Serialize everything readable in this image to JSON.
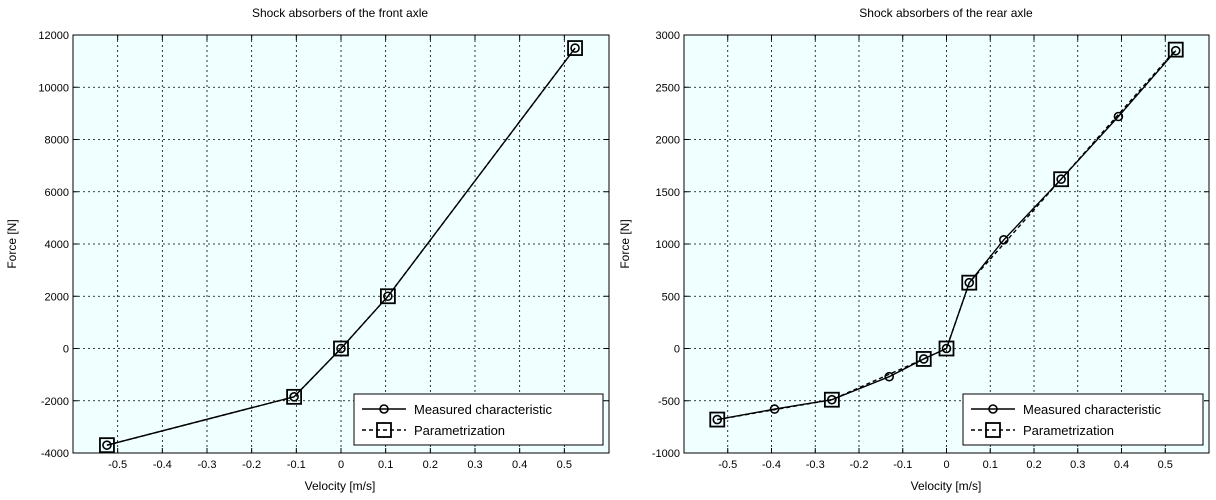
{
  "colors": {
    "plot_background": "#F0FFFF",
    "line": "#000000",
    "figure_background": "#FFFFFF"
  },
  "chart_data": [
    {
      "type": "line",
      "title": "Shock absorbers of the front axle",
      "xlabel": "Velocity [m/s]",
      "ylabel": "Force [N]",
      "xlim": [
        -0.6,
        0.6
      ],
      "ylim": [
        -4000,
        12000
      ],
      "xticks": [
        -0.5,
        -0.4,
        -0.3,
        -0.2,
        -0.1,
        0,
        0.1,
        0.2,
        0.3,
        0.4,
        0.5
      ],
      "xtick_labels": [
        "-0.5",
        "-0.4",
        "-0.3",
        "-0.2",
        "-0.1",
        "0",
        "0.1",
        "0.2",
        "0.3",
        "0.4",
        "0.5"
      ],
      "yticks": [
        -4000,
        -2000,
        0,
        2000,
        4000,
        6000,
        8000,
        10000,
        12000
      ],
      "ytick_labels": [
        "-4000",
        "-2000",
        "0",
        "2000",
        "4000",
        "6000",
        "8000",
        "10000",
        "12000"
      ],
      "grid": true,
      "legend_position": "bottom-right",
      "series": [
        {
          "name": "Measured characteristic",
          "marker": "circle",
          "line_style": "solid",
          "x": [
            -0.524,
            -0.105,
            0,
            0.105,
            0.524
          ],
          "y": [
            -3700,
            -1850,
            0,
            2000,
            11500
          ]
        },
        {
          "name": "Parametrization",
          "marker": "square",
          "line_style": "dashed",
          "x": [
            -0.524,
            -0.105,
            0,
            0.105,
            0.524
          ],
          "y": [
            -3700,
            -1850,
            0,
            2000,
            11500
          ]
        }
      ]
    },
    {
      "type": "line",
      "title": "Shock absorbers of the rear axle",
      "xlabel": "Velocity [m/s]",
      "ylabel": "Force [N]",
      "xlim": [
        -0.6,
        0.6
      ],
      "ylim": [
        -1000,
        3000
      ],
      "xticks": [
        -0.5,
        -0.4,
        -0.3,
        -0.2,
        -0.1,
        0,
        0.1,
        0.2,
        0.3,
        0.4,
        0.5
      ],
      "xtick_labels": [
        "-0.5",
        "-0.4",
        "-0.3",
        "-0.2",
        "-0.1",
        "0",
        "0.1",
        "0.2",
        "0.3",
        "0.4",
        "0.5"
      ],
      "yticks": [
        -1000,
        -500,
        0,
        500,
        1000,
        1500,
        2000,
        2500,
        3000
      ],
      "ytick_labels": [
        "-1000",
        "-500",
        "0",
        "500",
        "1000",
        "1500",
        "2000",
        "2500",
        "3000"
      ],
      "grid": true,
      "legend_position": "bottom-right",
      "series": [
        {
          "name": "Measured characteristic",
          "marker": "circle",
          "line_style": "solid",
          "x": [
            -0.524,
            -0.393,
            -0.262,
            -0.131,
            -0.052,
            0,
            0.052,
            0.131,
            0.262,
            0.393,
            0.524
          ],
          "y": [
            -680,
            -580,
            -490,
            -270,
            -100,
            0,
            630,
            1040,
            1620,
            2220,
            2850
          ]
        },
        {
          "name": "Parametrization",
          "marker": "square",
          "line_style": "dashed",
          "x": [
            -0.524,
            -0.262,
            -0.052,
            0,
            0.052,
            0.262,
            0.524
          ],
          "y": [
            -680,
            -490,
            -100,
            0,
            630,
            1620,
            2860
          ]
        }
      ]
    }
  ]
}
